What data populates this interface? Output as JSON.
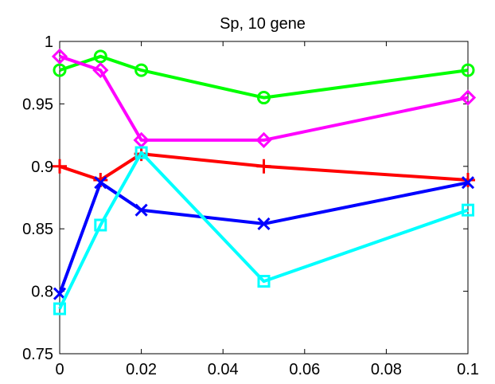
{
  "chart_data": {
    "type": "line",
    "title": "Sp, 10 gene",
    "xlabel": "",
    "ylabel": "",
    "xlim": [
      0,
      0.1
    ],
    "ylim": [
      0.75,
      1
    ],
    "grid": false,
    "x_ticks": [
      0,
      0.02,
      0.04,
      0.06,
      0.08,
      0.1
    ],
    "x_tick_labels": [
      "0",
      "0.02",
      "0.04",
      "0.06",
      "0.08",
      "0.1"
    ],
    "y_ticks": [
      0.75,
      0.8,
      0.85,
      0.9,
      0.95,
      1
    ],
    "y_tick_labels": [
      "0.75",
      "0.8",
      "0.85",
      "0.9",
      "0.95",
      "1"
    ],
    "x": [
      0,
      0.01,
      0.02,
      0.05,
      0.1
    ],
    "series": [
      {
        "color": "#00ff00",
        "marker": "circle",
        "values": [
          0.977,
          0.988,
          0.977,
          0.955,
          0.977
        ]
      },
      {
        "color": "#ff00ff",
        "marker": "diamond",
        "values": [
          0.988,
          0.977,
          0.921,
          0.921,
          0.955
        ]
      },
      {
        "color": "#ff0000",
        "marker": "plus",
        "values": [
          0.9,
          0.889,
          0.91,
          0.9,
          0.889
        ]
      },
      {
        "color": "#0000ff",
        "marker": "x",
        "values": [
          0.798,
          0.887,
          0.865,
          0.854,
          0.887
        ]
      },
      {
        "color": "#00ffff",
        "marker": "square",
        "values": [
          0.786,
          0.853,
          0.911,
          0.808,
          0.865
        ]
      }
    ]
  }
}
